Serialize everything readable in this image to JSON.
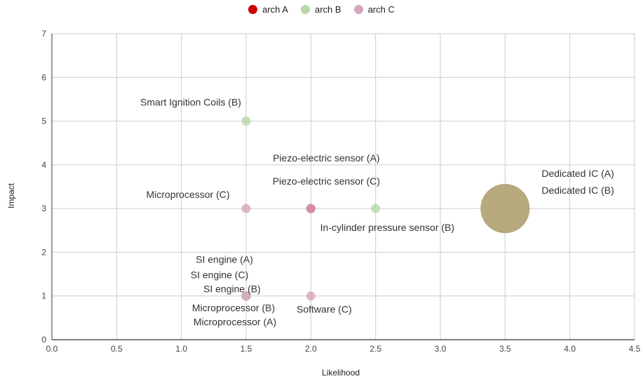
{
  "colors": {
    "arch_a": "#cc0000",
    "arch_b": "#b6d7a8",
    "arch_c": "#d5a6bd",
    "overlap": "#b5a67a",
    "grid": "#cccccc",
    "axis": "#333333"
  },
  "chart_data": {
    "type": "scatter",
    "xlabel": "Likelihood",
    "ylabel": "Impact",
    "xlim": [
      0,
      4.5
    ],
    "ylim": [
      0,
      7
    ],
    "xticks": [
      "0.0",
      "0.5",
      "1.0",
      "1.5",
      "2.0",
      "2.5",
      "3.0",
      "3.5",
      "4.0",
      "4.5"
    ],
    "yticks": [
      "0",
      "1",
      "2",
      "3",
      "4",
      "5",
      "6",
      "7"
    ],
    "grid": true,
    "legend_position": "top-center",
    "series": [
      {
        "name": "arch A",
        "color": "#cc0000",
        "points": [
          {
            "x": 1.5,
            "y": 1,
            "label": "SI engine (A)"
          },
          {
            "x": 1.5,
            "y": 1,
            "label": "Microprocessor (A)"
          },
          {
            "x": 2.0,
            "y": 3,
            "label": "Piezo-electric sensor (A)"
          },
          {
            "x": 3.5,
            "y": 3,
            "label": "Dedicated IC (A)",
            "big": true
          }
        ]
      },
      {
        "name": "arch B",
        "color": "#b6d7a8",
        "points": [
          {
            "x": 1.5,
            "y": 5,
            "label": "Smart Ignition Coils (B)"
          },
          {
            "x": 1.5,
            "y": 1,
            "label": "SI engine (B)"
          },
          {
            "x": 1.5,
            "y": 1,
            "label": "Microprocessor (B)"
          },
          {
            "x": 2.5,
            "y": 3,
            "label": "In-cylinder pressure sensor (B)"
          },
          {
            "x": 3.5,
            "y": 3,
            "label": "Dedicated IC (B)",
            "big": true
          }
        ]
      },
      {
        "name": "arch C",
        "color": "#d5a6bd",
        "points": [
          {
            "x": 1.5,
            "y": 3,
            "label": "Microprocessor (C)"
          },
          {
            "x": 1.5,
            "y": 1,
            "label": "SI engine (C)"
          },
          {
            "x": 2.0,
            "y": 3,
            "label": "Piezo-electric sensor (C)"
          },
          {
            "x": 2.0,
            "y": 1,
            "label": "Software (C)"
          }
        ]
      }
    ]
  }
}
